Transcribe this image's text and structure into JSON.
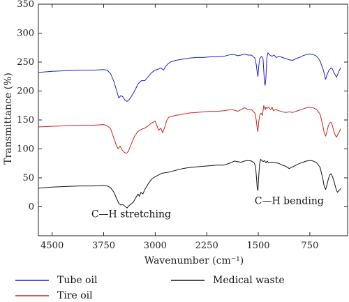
{
  "chart_data": {
    "type": "line",
    "xlabel": "Wavenumber (cm⁻¹)",
    "ylabel": "Transmittance (%)",
    "xlim": [
      4700,
      200
    ],
    "ylim": [
      -50,
      350
    ],
    "x_reversed": true,
    "xticks": [
      4500,
      3750,
      3000,
      2250,
      1500,
      750
    ],
    "yticks": [
      0,
      50,
      100,
      150,
      200,
      250,
      300,
      350
    ],
    "grid": false,
    "legend_position": "bottom",
    "annotations": [
      {
        "text": "C—H stretching",
        "x": 3350,
        "y": -18
      },
      {
        "text": "C—H bending",
        "x": 1050,
        "y": 5
      }
    ],
    "series": [
      {
        "name": "Tube oil",
        "color": "#1f1fcc",
        "points": [
          [
            4700,
            232
          ],
          [
            4500,
            234
          ],
          [
            4300,
            235
          ],
          [
            4100,
            236
          ],
          [
            3900,
            236
          ],
          [
            3750,
            237
          ],
          [
            3700,
            236
          ],
          [
            3650,
            230
          ],
          [
            3600,
            216
          ],
          [
            3560,
            200
          ],
          [
            3530,
            188
          ],
          [
            3500,
            192
          ],
          [
            3470,
            190
          ],
          [
            3440,
            184
          ],
          [
            3410,
            182
          ],
          [
            3380,
            185
          ],
          [
            3350,
            190
          ],
          [
            3300,
            200
          ],
          [
            3250,
            212
          ],
          [
            3200,
            218
          ],
          [
            3150,
            218
          ],
          [
            3100,
            225
          ],
          [
            3050,
            232
          ],
          [
            3000,
            236
          ],
          [
            2950,
            238
          ],
          [
            2920,
            240
          ],
          [
            2880,
            236
          ],
          [
            2850,
            242
          ],
          [
            2820,
            246
          ],
          [
            2780,
            250
          ],
          [
            2700,
            253
          ],
          [
            2600,
            255
          ],
          [
            2500,
            257
          ],
          [
            2400,
            258
          ],
          [
            2300,
            258
          ],
          [
            2200,
            259
          ],
          [
            2100,
            259
          ],
          [
            2000,
            260
          ],
          [
            1900,
            263
          ],
          [
            1850,
            263
          ],
          [
            1800,
            261
          ],
          [
            1750,
            262
          ],
          [
            1700,
            264
          ],
          [
            1650,
            262
          ],
          [
            1600,
            262
          ],
          [
            1550,
            257
          ],
          [
            1530,
            246
          ],
          [
            1515,
            232
          ],
          [
            1505,
            225
          ],
          [
            1495,
            240
          ],
          [
            1480,
            256
          ],
          [
            1450,
            260
          ],
          [
            1430,
            255
          ],
          [
            1410,
            215
          ],
          [
            1400,
            210
          ],
          [
            1390,
            222
          ],
          [
            1375,
            257
          ],
          [
            1360,
            266
          ],
          [
            1330,
            262
          ],
          [
            1300,
            260
          ],
          [
            1270,
            262
          ],
          [
            1240,
            258
          ],
          [
            1200,
            260
          ],
          [
            1150,
            258
          ],
          [
            1100,
            256
          ],
          [
            1050,
            254
          ],
          [
            1000,
            253
          ],
          [
            950,
            256
          ],
          [
            900,
            258
          ],
          [
            850,
            261
          ],
          [
            800,
            263
          ],
          [
            750,
            264
          ],
          [
            700,
            263
          ],
          [
            650,
            260
          ],
          [
            600,
            252
          ],
          [
            550,
            235
          ],
          [
            520,
            220
          ],
          [
            500,
            228
          ],
          [
            470,
            236
          ],
          [
            440,
            240
          ],
          [
            420,
            238
          ],
          [
            400,
            232
          ],
          [
            380,
            228
          ],
          [
            360,
            224
          ],
          [
            340,
            230
          ],
          [
            320,
            236
          ],
          [
            300,
            240
          ]
        ]
      },
      {
        "name": "Tire oil",
        "color": "#cc2222",
        "points": [
          [
            4700,
            138
          ],
          [
            4500,
            139
          ],
          [
            4300,
            140
          ],
          [
            4100,
            141
          ],
          [
            3900,
            141
          ],
          [
            3750,
            142
          ],
          [
            3700,
            140
          ],
          [
            3650,
            135
          ],
          [
            3600,
            118
          ],
          [
            3570,
            108
          ],
          [
            3540,
            100
          ],
          [
            3510,
            105
          ],
          [
            3480,
            98
          ],
          [
            3450,
            94
          ],
          [
            3420,
            92
          ],
          [
            3390,
            96
          ],
          [
            3350,
            108
          ],
          [
            3300,
            122
          ],
          [
            3250,
            130
          ],
          [
            3200,
            134
          ],
          [
            3150,
            136
          ],
          [
            3100,
            140
          ],
          [
            3050,
            145
          ],
          [
            3000,
            148
          ],
          [
            2950,
            132
          ],
          [
            2920,
            136
          ],
          [
            2890,
            128
          ],
          [
            2860,
            138
          ],
          [
            2830,
            150
          ],
          [
            2800,
            155
          ],
          [
            2700,
            158
          ],
          [
            2600,
            160
          ],
          [
            2500,
            162
          ],
          [
            2400,
            163
          ],
          [
            2300,
            164
          ],
          [
            2200,
            165
          ],
          [
            2100,
            165
          ],
          [
            2000,
            166
          ],
          [
            1900,
            168
          ],
          [
            1850,
            167
          ],
          [
            1800,
            165
          ],
          [
            1750,
            168
          ],
          [
            1700,
            171
          ],
          [
            1650,
            168
          ],
          [
            1600,
            168
          ],
          [
            1550,
            162
          ],
          [
            1530,
            150
          ],
          [
            1515,
            135
          ],
          [
            1505,
            130
          ],
          [
            1495,
            145
          ],
          [
            1480,
            158
          ],
          [
            1460,
            162
          ],
          [
            1440,
            158
          ],
          [
            1420,
            175
          ],
          [
            1400,
            168
          ],
          [
            1390,
            172
          ],
          [
            1375,
            170
          ],
          [
            1350,
            172
          ],
          [
            1320,
            168
          ],
          [
            1300,
            172
          ],
          [
            1280,
            166
          ],
          [
            1250,
            168
          ],
          [
            1200,
            166
          ],
          [
            1150,
            164
          ],
          [
            1100,
            163
          ],
          [
            1050,
            164
          ],
          [
            1000,
            163
          ],
          [
            950,
            165
          ],
          [
            900,
            167
          ],
          [
            850,
            169
          ],
          [
            800,
            171
          ],
          [
            750,
            172
          ],
          [
            700,
            171
          ],
          [
            650,
            168
          ],
          [
            600,
            160
          ],
          [
            560,
            140
          ],
          [
            540,
            128
          ],
          [
            520,
            122
          ],
          [
            500,
            130
          ],
          [
            480,
            140
          ],
          [
            460,
            145
          ],
          [
            440,
            146
          ],
          [
            420,
            140
          ],
          [
            400,
            130
          ],
          [
            380,
            124
          ],
          [
            360,
            120
          ],
          [
            340,
            126
          ],
          [
            320,
            130
          ],
          [
            300,
            135
          ]
        ]
      },
      {
        "name": "Medical waste",
        "color": "#111111",
        "points": [
          [
            4700,
            32
          ],
          [
            4500,
            34
          ],
          [
            4300,
            35
          ],
          [
            4100,
            36
          ],
          [
            3900,
            36
          ],
          [
            3750,
            37
          ],
          [
            3700,
            36
          ],
          [
            3650,
            33
          ],
          [
            3600,
            25
          ],
          [
            3560,
            14
          ],
          [
            3530,
            6
          ],
          [
            3500,
            3
          ],
          [
            3470,
            4
          ],
          [
            3440,
            1
          ],
          [
            3410,
            -2
          ],
          [
            3380,
            2
          ],
          [
            3350,
            5
          ],
          [
            3320,
            8
          ],
          [
            3300,
            12
          ],
          [
            3250,
            22
          ],
          [
            3230,
            18
          ],
          [
            3210,
            25
          ],
          [
            3180,
            22
          ],
          [
            3150,
            30
          ],
          [
            3100,
            40
          ],
          [
            3050,
            48
          ],
          [
            3000,
            52
          ],
          [
            2950,
            55
          ],
          [
            2900,
            58
          ],
          [
            2800,
            60
          ],
          [
            2700,
            63
          ],
          [
            2600,
            66
          ],
          [
            2500,
            68
          ],
          [
            2400,
            69
          ],
          [
            2300,
            70
          ],
          [
            2200,
            71
          ],
          [
            2100,
            72
          ],
          [
            2000,
            72
          ],
          [
            1950,
            74
          ],
          [
            1900,
            76
          ],
          [
            1850,
            79
          ],
          [
            1800,
            78
          ],
          [
            1750,
            77
          ],
          [
            1700,
            79
          ],
          [
            1650,
            80
          ],
          [
            1600,
            79
          ],
          [
            1560,
            76
          ],
          [
            1540,
            70
          ],
          [
            1525,
            48
          ],
          [
            1515,
            32
          ],
          [
            1505,
            28
          ],
          [
            1495,
            50
          ],
          [
            1480,
            75
          ],
          [
            1465,
            82
          ],
          [
            1450,
            80
          ],
          [
            1430,
            78
          ],
          [
            1410,
            80
          ],
          [
            1390,
            76
          ],
          [
            1370,
            79
          ],
          [
            1350,
            76
          ],
          [
            1300,
            77
          ],
          [
            1250,
            76
          ],
          [
            1200,
            75
          ],
          [
            1150,
            72
          ],
          [
            1100,
            70
          ],
          [
            1050,
            66
          ],
          [
            1000,
            69
          ],
          [
            950,
            72
          ],
          [
            900,
            75
          ],
          [
            850,
            77
          ],
          [
            800,
            79
          ],
          [
            750,
            80
          ],
          [
            700,
            79
          ],
          [
            650,
            76
          ],
          [
            600,
            68
          ],
          [
            560,
            48
          ],
          [
            540,
            35
          ],
          [
            520,
            30
          ],
          [
            500,
            38
          ],
          [
            480,
            48
          ],
          [
            460,
            55
          ],
          [
            440,
            57
          ],
          [
            420,
            52
          ],
          [
            400,
            45
          ],
          [
            380,
            36
          ],
          [
            360,
            28
          ],
          [
            345,
            25
          ],
          [
            330,
            28
          ],
          [
            310,
            30
          ],
          [
            300,
            32
          ]
        ]
      }
    ]
  }
}
